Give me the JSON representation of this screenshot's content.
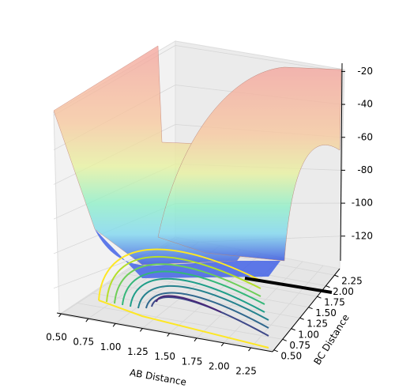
{
  "chart_data": {
    "type": "surface3d",
    "xlabel": "AB Distance",
    "ylabel": "BC Distance",
    "xlim": [
      0.46,
      2.45
    ],
    "ylim": [
      0.46,
      2.4
    ],
    "zlim": [
      -135,
      -15
    ],
    "xticks": [
      {
        "value": 0.5,
        "label": "0.50"
      },
      {
        "value": 0.75,
        "label": "0.75"
      },
      {
        "value": 1.0,
        "label": "1.00"
      },
      {
        "value": 1.25,
        "label": "1.25"
      },
      {
        "value": 1.5,
        "label": "1.50"
      },
      {
        "value": 1.75,
        "label": "1.75"
      },
      {
        "value": 2.0,
        "label": "2.00"
      },
      {
        "value": 2.25,
        "label": "2.25"
      }
    ],
    "yticks": [
      {
        "value": 0.5,
        "label": "0.50"
      },
      {
        "value": 0.75,
        "label": "0.75"
      },
      {
        "value": 1.0,
        "label": "1.00"
      },
      {
        "value": 1.25,
        "label": "1.25"
      },
      {
        "value": 1.5,
        "label": "1.50"
      },
      {
        "value": 1.75,
        "label": "1.75"
      },
      {
        "value": 2.0,
        "label": "2.00"
      },
      {
        "value": 2.25,
        "label": "2.25"
      }
    ],
    "zticks": [
      -20,
      -40,
      -60,
      -80,
      -100,
      -120
    ],
    "grid": true
  }
}
